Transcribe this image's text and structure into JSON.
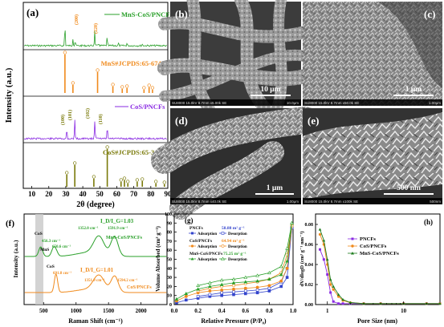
{
  "colors": {
    "green": "#2aa02a",
    "orange": "#f08a1c",
    "purple": "#8a2be2",
    "olive": "#7a7a0a",
    "blue": "#3344cc",
    "darkgreen": "#1a7a1a",
    "sem_bg": "#3c3c3c",
    "sem_fiber": "#a8a8a8"
  },
  "panel_a": {
    "letter": "(a)",
    "xlabel": "2θ (degree)",
    "ylabel": "Intensity (a.u.)",
    "xticks": [
      "10",
      "20",
      "30",
      "40",
      "50",
      "60",
      "70",
      "80",
      "90"
    ],
    "labels": {
      "mns_cos": "MnS-CoS/PNCFs",
      "mns_ref": "MnS#JCPDS:65-6745",
      "cos": "CoS/PNCFs",
      "cos_ref": "CoS#JCPDS:65-3418"
    },
    "peak_labels": {
      "p200": "(200)",
      "p220": "(220)",
      "p100": "(100)",
      "p101": "(101)",
      "p102": "(102)",
      "p110": "(110)"
    }
  },
  "sem": {
    "b": {
      "letter": "(b)",
      "scale": "10 μm",
      "footer": "SU8000 15.0kV 8.7mm x5.00k SE",
      "footer_r": "10.0μm"
    },
    "c": {
      "letter": "(c)",
      "scale": "1 μm",
      "footer": "SU8000 15.0kV 8.7mm x50.0k SE",
      "footer_r": "1.00μm"
    },
    "d": {
      "letter": "(d)",
      "scale": "1 μm",
      "footer": "SU8000 15.0kV 8.7mm x40.0k SE",
      "footer_r": "1.00μm"
    },
    "e": {
      "letter": "(e)",
      "scale": "500 nm",
      "footer": "SU8000 15.0kV 8.7mm x100k SE",
      "footer_r": "500nm"
    }
  },
  "panel_f": {
    "letter": "(f)",
    "xlabel": "Raman Shift (cm⁻¹)",
    "ylabel": "Intensity (a.u.)",
    "xticks": [
      "500",
      "1000",
      "1500",
      "2000"
    ],
    "labels": {
      "cos_tag": "CoS",
      "mns_tag": "MnS",
      "cos_tag2": "CoS",
      "p456": "456.3 cm⁻¹",
      "p650": "650.6 cm⁻¹",
      "p691": "691.8 cm⁻¹",
      "d_mns": "1352.0 cm⁻¹",
      "g_mns": "1591.9 cm⁻¹",
      "d_cos": "1351.9 cm⁻¹",
      "g_cos": "1594.2 cm⁻¹",
      "ratio_mns": "I_D/I_G=1.03",
      "ratio_cos": "I_D/I_G=1.01",
      "series_mns": "MnS-CoS/PNCFs",
      "series_cos": "CoS/PNCFs"
    }
  },
  "panel_g": {
    "letter": "(g)",
    "xlabel": "Relative Pressure (P/P₀)",
    "ylabel": "Volume Absorbed (cm³ g⁻¹)",
    "xticks": [
      "0.0",
      "0.2",
      "0.4",
      "0.6",
      "0.8",
      "1.0"
    ],
    "yticks": [
      "0",
      "10",
      "20",
      "30",
      "40",
      "50",
      "60",
      "70",
      "80",
      "90",
      "100"
    ],
    "legend": {
      "pncfs": "PNCFs",
      "pncfs_area": "58.88 m² g⁻¹",
      "cos": "CoS/PNCFs",
      "cos_area": "64.94 m² g⁻¹",
      "mns": "MnS-CoS/PNCFs",
      "mns_area": "75.25 m² g⁻¹",
      "ads": "Adsorption",
      "des": "Desorption"
    }
  },
  "panel_h": {
    "letter": "(h)",
    "xlabel": "Pore Size (nm)",
    "ylabel": "dV/dlogD (cm³ g⁻¹ nm⁻¹)",
    "xticks": [
      "1",
      "10"
    ],
    "yticks": [
      "0.00",
      "0.02",
      "0.04",
      "0.06",
      "0.08"
    ],
    "legend": [
      "PNCFs",
      "CoS/PNCFs",
      "MnS-CoS/PNCFs"
    ]
  },
  "chart_data": [
    {
      "type": "line",
      "panel": "h",
      "xlabel": "Pore Size (nm)",
      "ylabel": "dV/dlogD (cm³ g⁻¹ nm⁻¹)",
      "xscale": "log",
      "xlim": [
        0.7,
        30
      ],
      "ylim": [
        0,
        0.08
      ],
      "series": [
        {
          "name": "PNCFs",
          "x": [
            0.8,
            0.9,
            1.0,
            1.1,
            1.2,
            1.4,
            1.6,
            2,
            3,
            5,
            10,
            20,
            30
          ],
          "values": [
            0.055,
            0.045,
            0.03,
            0.012,
            0.003,
            0.001,
            0.001,
            0.001,
            0.001,
            0.001,
            0.001,
            0.001,
            0.001
          ]
        },
        {
          "name": "CoS/PNCFs",
          "x": [
            0.8,
            0.9,
            1.0,
            1.1,
            1.2,
            1.4,
            1.6,
            2,
            3,
            5,
            10,
            20,
            30
          ],
          "values": [
            0.07,
            0.06,
            0.04,
            0.02,
            0.015,
            0.008,
            0.004,
            0.002,
            0.001,
            0.001,
            0.001,
            0.001,
            0.001
          ]
        },
        {
          "name": "MnS-CoS/PNCFs",
          "x": [
            0.8,
            0.9,
            1.0,
            1.1,
            1.2,
            1.4,
            1.6,
            2,
            3,
            5,
            10,
            20,
            30
          ],
          "values": [
            0.075,
            0.064,
            0.045,
            0.025,
            0.018,
            0.01,
            0.005,
            0.002,
            0.001,
            0.001,
            0.001,
            0.001,
            0.001
          ]
        }
      ]
    },
    {
      "type": "line",
      "panel": "g",
      "xlabel": "Relative Pressure (P/P₀)",
      "ylabel": "Volume Absorbed (cm³ g⁻¹)",
      "xlim": [
        0,
        1.0
      ],
      "ylim": [
        0,
        100
      ],
      "series": [
        {
          "name": "PNCFs Adsorption",
          "x": [
            0.02,
            0.1,
            0.2,
            0.3,
            0.4,
            0.5,
            0.6,
            0.7,
            0.8,
            0.9,
            0.95,
            0.99
          ],
          "values": [
            2,
            5,
            7,
            9,
            10,
            11,
            12,
            13,
            15,
            20,
            30,
            85
          ]
        },
        {
          "name": "PNCFs Desorption",
          "x": [
            0.99,
            0.95,
            0.9,
            0.8,
            0.7,
            0.6,
            0.5,
            0.4,
            0.3,
            0.2
          ],
          "values": [
            85,
            40,
            25,
            18,
            16,
            15,
            14,
            13,
            11,
            9
          ]
        },
        {
          "name": "CoS/PNCFs Adsorption",
          "x": [
            0.02,
            0.1,
            0.2,
            0.3,
            0.4,
            0.5,
            0.6,
            0.7,
            0.8,
            0.9,
            0.95,
            0.99
          ],
          "values": [
            4,
            9,
            13,
            15,
            16,
            17,
            18,
            19,
            21,
            26,
            40,
            87
          ]
        },
        {
          "name": "CoS/PNCFs Desorption",
          "x": [
            0.99,
            0.95,
            0.9,
            0.8,
            0.7,
            0.6,
            0.5,
            0.4,
            0.3,
            0.2
          ],
          "values": [
            87,
            55,
            35,
            28,
            25,
            23,
            21,
            20,
            18,
            15
          ]
        },
        {
          "name": "MnS-CoS/PNCFs Adsorption",
          "x": [
            0.02,
            0.1,
            0.2,
            0.3,
            0.4,
            0.5,
            0.6,
            0.7,
            0.8,
            0.9,
            0.95,
            0.99
          ],
          "values": [
            6,
            12,
            17,
            20,
            22,
            24,
            25,
            26,
            28,
            33,
            48,
            90
          ]
        },
        {
          "name": "MnS-CoS/PNCFs Desorption",
          "x": [
            0.99,
            0.95,
            0.9,
            0.8,
            0.7,
            0.6,
            0.5,
            0.4,
            0.3,
            0.2
          ],
          "values": [
            90,
            62,
            42,
            35,
            32,
            30,
            28,
            27,
            24,
            21
          ]
        }
      ]
    }
  ]
}
